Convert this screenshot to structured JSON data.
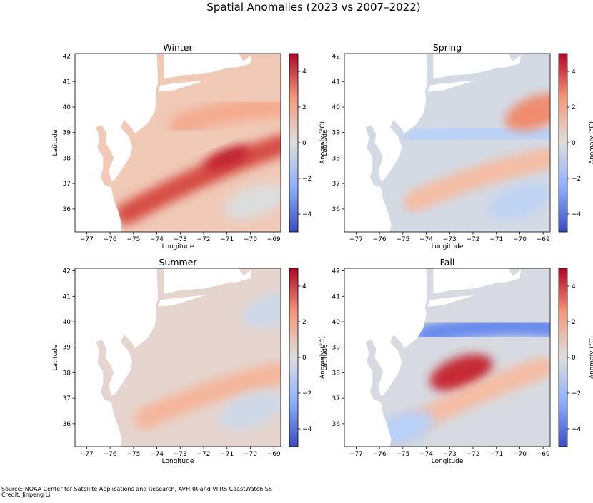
{
  "figure": {
    "title": "Spatial Anomalies (2023 vs 2007–2022)",
    "source": "Source: NOAA Center for Satellite Applications and Research, AVHRR-and-VIIRS CoastWatch SST",
    "credit": "Credit: Jinpeng Li"
  },
  "chart_data": [
    {
      "type": "heatmap",
      "title": "Winter",
      "xlabel": "Longitude",
      "ylabel": "Latitude",
      "colorbar_label": "Anomaly (°C)",
      "colormap": "coolwarm",
      "xlim": [
        -77.5,
        -68.7
      ],
      "ylim": [
        35.1,
        42.1
      ],
      "xticks": [
        -77,
        -76,
        -75,
        -74,
        -73,
        -72,
        -71,
        -70,
        -69
      ],
      "yticks": [
        36,
        37,
        38,
        39,
        40,
        41,
        42
      ],
      "clim": [
        -5,
        5
      ],
      "cbar_ticks": [
        -4,
        -2,
        0,
        2,
        4
      ],
      "background_anomaly": 1.0,
      "features": [
        {
          "name": "Gulf Stream warm band",
          "from": [
            -75.3,
            35.8
          ],
          "to": [
            -68.7,
            38.5
          ],
          "peak_at": [
            -71.0,
            38.0
          ],
          "anomaly": 4.0
        },
        {
          "name": "Shelf-slope warm band",
          "from": [
            -73.0,
            39.3
          ],
          "to": [
            -68.7,
            40.0
          ],
          "anomaly": 2.0
        },
        {
          "name": "Offshore southeast",
          "at": [
            -69.8,
            36.3
          ],
          "anomaly": 0.0
        }
      ]
    },
    {
      "type": "heatmap",
      "title": "Spring",
      "xlabel": "Longitude",
      "ylabel": "Latitude",
      "colorbar_label": "Anomaly (°C)",
      "colormap": "coolwarm",
      "xlim": [
        -77.5,
        -68.7
      ],
      "ylim": [
        35.1,
        42.1
      ],
      "xticks": [
        -77,
        -76,
        -75,
        -74,
        -73,
        -72,
        -71,
        -70,
        -69
      ],
      "yticks": [
        36,
        37,
        38,
        39,
        40,
        41,
        42
      ],
      "clim": [
        -5,
        5
      ],
      "cbar_ticks": [
        -4,
        -2,
        0,
        2,
        4
      ],
      "background_anomaly": -0.3,
      "features": [
        {
          "name": "Slope sea cool band",
          "from": [
            -74.5,
            38.8
          ],
          "to": [
            -68.7,
            39.0
          ],
          "anomaly": -1.2
        },
        {
          "name": "Gulf Stream warm band",
          "from": [
            -74.5,
            36.3
          ],
          "to": [
            -68.7,
            38.0
          ],
          "anomaly": 1.5
        },
        {
          "name": "Shelf warm anomaly",
          "at": [
            -69.3,
            39.8
          ],
          "anomaly": 2.8
        },
        {
          "name": "Offshore southeast cool",
          "at": [
            -70.0,
            36.3
          ],
          "anomaly": -1.0
        }
      ]
    },
    {
      "type": "heatmap",
      "title": "Summer",
      "xlabel": "Longitude",
      "ylabel": "Latitude",
      "colorbar_label": "Anomaly (°C)",
      "colormap": "coolwarm",
      "xlim": [
        -77.5,
        -68.7
      ],
      "ylim": [
        35.1,
        42.1
      ],
      "xticks": [
        -77,
        -76,
        -75,
        -74,
        -73,
        -72,
        -71,
        -70,
        -69
      ],
      "yticks": [
        36,
        37,
        38,
        39,
        40,
        41,
        42
      ],
      "clim": [
        -5,
        5
      ],
      "cbar_ticks": [
        -4,
        -2,
        0,
        2,
        4
      ],
      "background_anomaly": 0.4,
      "features": [
        {
          "name": "Gulf Stream warm band",
          "from": [
            -74.5,
            36.2
          ],
          "to": [
            -68.7,
            38.0
          ],
          "anomaly": 1.7
        },
        {
          "name": "Gulf of Maine cool",
          "at": [
            -69.0,
            40.5
          ],
          "anomaly": -0.5
        },
        {
          "name": "Offshore southeast cool",
          "at": [
            -70.0,
            36.5
          ],
          "anomaly": -0.5
        }
      ]
    },
    {
      "type": "heatmap",
      "title": "Fall",
      "xlabel": "Longitude",
      "ylabel": "Latitude",
      "colorbar_label": "Anomaly (°C)",
      "colormap": "coolwarm",
      "xlim": [
        -77.5,
        -68.7
      ],
      "ylim": [
        35.1,
        42.1
      ],
      "xticks": [
        -77,
        -76,
        -75,
        -74,
        -73,
        -72,
        -71,
        -70,
        -69
      ],
      "yticks": [
        36,
        37,
        38,
        39,
        40,
        41,
        42
      ],
      "clim": [
        -5,
        5
      ],
      "cbar_ticks": [
        -4,
        -2,
        0,
        2,
        4
      ],
      "background_anomaly": -0.2,
      "features": [
        {
          "name": "Strong cool band",
          "from": [
            -74.0,
            39.5
          ],
          "to": [
            -68.7,
            39.8
          ],
          "anomaly": -3.5
        },
        {
          "name": "Strong warm eddy",
          "at": [
            -72.5,
            38.0
          ],
          "anomaly": 4.5
        },
        {
          "name": "Gulf Stream warm band",
          "from": [
            -75.5,
            35.5
          ],
          "to": [
            -69.0,
            38.2
          ],
          "anomaly": 1.5
        },
        {
          "name": "Southwest cool",
          "at": [
            -75.0,
            35.8
          ],
          "anomaly": -1.2
        }
      ]
    }
  ]
}
